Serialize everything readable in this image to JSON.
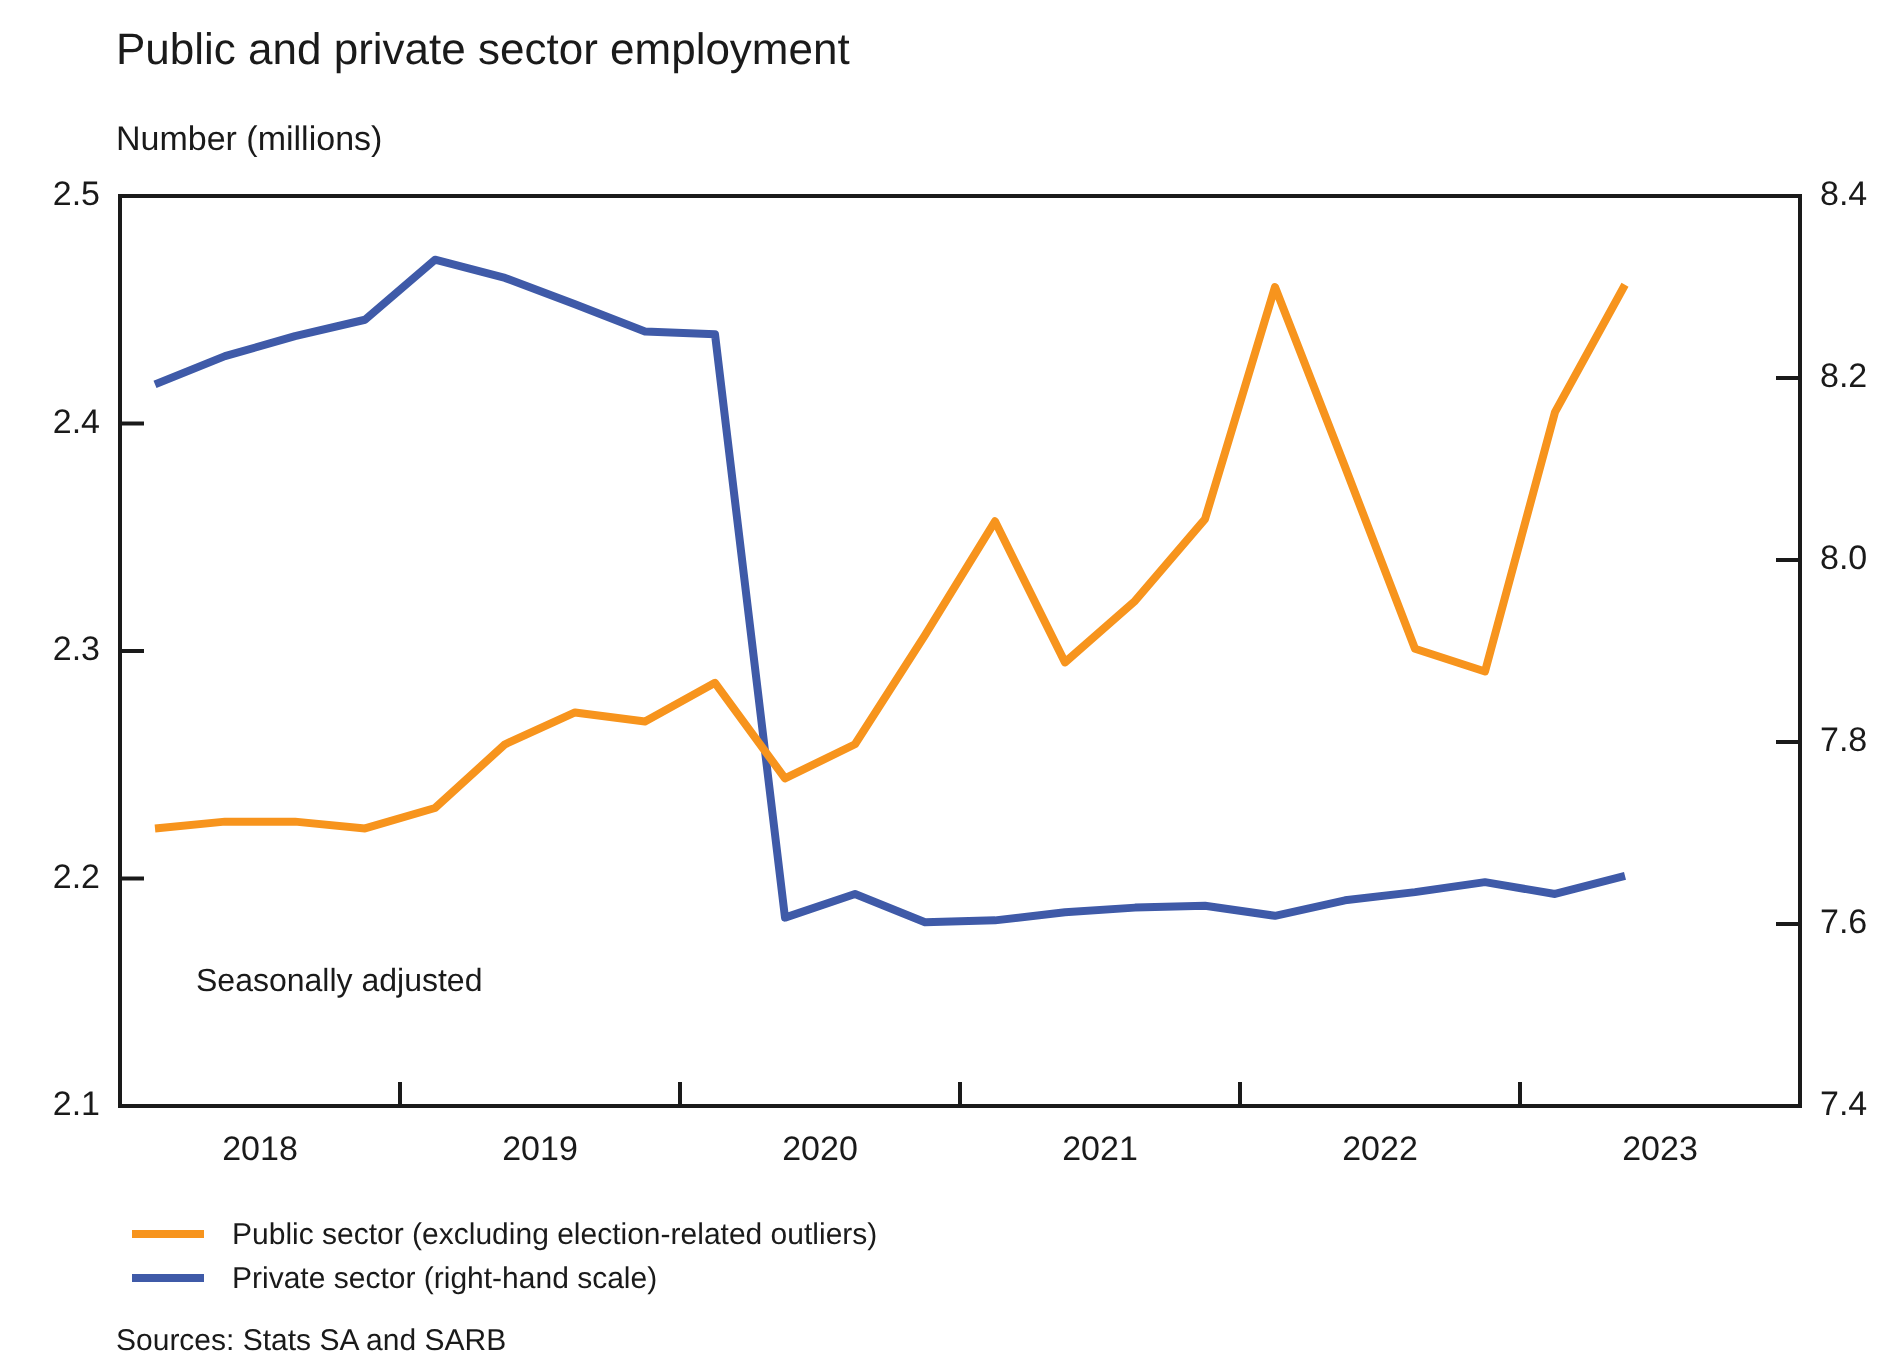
{
  "chart_data": {
    "type": "line",
    "title": "Public and private sector employment",
    "ylabel": "Number (millions)",
    "x": [
      2018.125,
      2018.375,
      2018.625,
      2018.875,
      2019.125,
      2019.375,
      2019.625,
      2019.875,
      2020.125,
      2020.375,
      2020.625,
      2020.875,
      2021.125,
      2021.375,
      2021.625,
      2021.875,
      2022.125,
      2022.375,
      2022.625,
      2022.875,
      2023.125,
      2023.375
    ],
    "series": [
      {
        "name": "Public sector (excluding election-related outliers)",
        "color": "#f7941d",
        "values": [
          2.222,
          2.225,
          2.225,
          2.222,
          2.231,
          2.259,
          2.273,
          2.269,
          2.286,
          2.244,
          2.259,
          2.307,
          2.357,
          2.295,
          2.322,
          2.358,
          2.46,
          2.381,
          2.301,
          2.291,
          2.405,
          2.461
        ]
      },
      {
        "name": "Private sector (right-hand scale)",
        "color": "#3f5aa8",
        "axis": "y2",
        "values": [
          8.193,
          8.224,
          8.246,
          8.264,
          8.33,
          8.31,
          8.281,
          8.251,
          8.248,
          7.607,
          7.633,
          7.602,
          7.604,
          7.613,
          7.618,
          7.62,
          7.609,
          7.626,
          7.635,
          7.646,
          7.633,
          7.653
        ]
      }
    ],
    "xlim": [
      2018,
      2024
    ],
    "xticks": [
      {
        "value": 2018.5,
        "label": "2018"
      },
      {
        "value": 2019,
        "label": null
      },
      {
        "value": 2019.5,
        "label": "2019"
      },
      {
        "value": 2020,
        "label": null
      },
      {
        "value": 2020.5,
        "label": "2020"
      },
      {
        "value": 2021,
        "label": null
      },
      {
        "value": 2021.5,
        "label": "2021"
      },
      {
        "value": 2022,
        "label": null
      },
      {
        "value": 2022.5,
        "label": "2022"
      },
      {
        "value": 2023,
        "label": null
      },
      {
        "value": 2023.5,
        "label": "2023"
      }
    ],
    "ylim": [
      2.1,
      2.5
    ],
    "yticks": [
      {
        "value": 2.1,
        "label": "2.1"
      },
      {
        "value": 2.2,
        "label": "2.2"
      },
      {
        "value": 2.3,
        "label": "2.3"
      },
      {
        "value": 2.4,
        "label": "2.4"
      },
      {
        "value": 2.5,
        "label": "2.5"
      }
    ],
    "y2lim": [
      7.4,
      8.4
    ],
    "y2ticks": [
      {
        "value": 7.4,
        "label": "7.4"
      },
      {
        "value": 7.6,
        "label": "7.6"
      },
      {
        "value": 7.8,
        "label": "7.8"
      },
      {
        "value": 8.0,
        "label": "8.0"
      },
      {
        "value": 8.2,
        "label": "8.2"
      },
      {
        "value": 8.4,
        "label": "8.4"
      }
    ],
    "grid": false,
    "legend": "bottom",
    "marker": "none",
    "line_style": "solid",
    "annotations": [
      "Seasonally adjusted",
      "Sources: Stats SA and SARB"
    ]
  }
}
